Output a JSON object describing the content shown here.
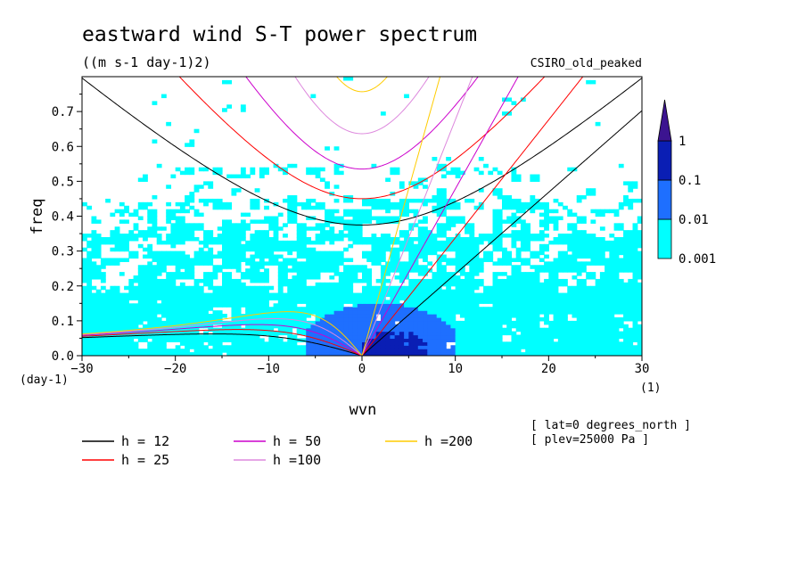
{
  "chart_data": {
    "type": "heatmap",
    "title": "eastward wind S-T power spectrum",
    "units": "((m s-1 day-1)2)",
    "dataset": "CSIRO_old_peaked",
    "xlabel": "wvn",
    "ylabel": "freq",
    "x_unit_label": "(1)",
    "y_unit_label": "(day-1)",
    "xlim": [
      -30,
      30
    ],
    "ylim": [
      0,
      0.8
    ],
    "x_ticks": [
      -30,
      -20,
      -10,
      0,
      10,
      20,
      30
    ],
    "y_ticks": [
      0.0,
      0.1,
      0.2,
      0.3,
      0.4,
      0.5,
      0.6,
      0.7
    ],
    "y_tick_labels": [
      "0.0",
      "0.1",
      "0.2",
      "0.3",
      "0.4",
      "0.5",
      "0.6",
      "0.7"
    ],
    "colorbar": {
      "levels": [
        "0.001",
        "0.01",
        "0.1",
        "1"
      ],
      "colors": [
        "#00ffff",
        "#1e6fff",
        "#0a1eb4",
        "#3c1490"
      ]
    },
    "regions": [
      {
        "level": 1,
        "description": "speckled cyan across domain, dense for freq < 0.4"
      },
      {
        "level": 2,
        "description": "medium blue around wvn -6..10, freq 0..0.15"
      },
      {
        "level": 3,
        "description": "dark blue around wvn 0..7, freq 0..0.08"
      }
    ],
    "dispersion_curves": [
      {
        "name": "h = 12",
        "h": 12,
        "color": "#000000"
      },
      {
        "name": "h = 25",
        "h": 25,
        "color": "#ff0000"
      },
      {
        "name": "h = 50",
        "h": 50,
        "color": "#cc00cc"
      },
      {
        "name": "h =100",
        "h": 100,
        "color": "#dd88dd"
      },
      {
        "name": "h =200",
        "h": 200,
        "color": "#ffcc00"
      }
    ],
    "annotations": [
      "[ lat=0 degrees_north ]",
      "[ plev=25000 Pa ]"
    ]
  }
}
